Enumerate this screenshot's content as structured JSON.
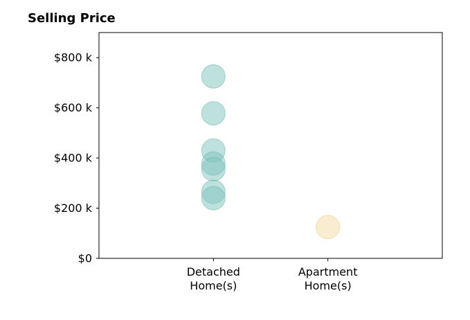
{
  "chart_data": {
    "type": "scatter",
    "title": "Selling Price",
    "xlabel": "",
    "ylabel": "",
    "categories": [
      "Detached Home(s)",
      "Apartment Home(s)"
    ],
    "category_label_lines": [
      [
        "Detached",
        "Home(s)"
      ],
      [
        "Apartment",
        "Home(s)"
      ]
    ],
    "xlim": [
      0,
      3
    ],
    "ylim": [
      0,
      900000
    ],
    "y_ticks": [
      0,
      200000,
      400000,
      600000,
      800000
    ],
    "y_tick_labels": [
      "$0",
      "$200 k",
      "$400 k",
      "$600 k",
      "$800 k"
    ],
    "grid": false,
    "series": [
      {
        "category": "Detached Home(s)",
        "color": "#80c4bd",
        "edge_color": "#5fb3aa",
        "opacity": 0.5,
        "values": [
          725000,
          578000,
          430000,
          378000,
          355000,
          265000,
          240000
        ]
      },
      {
        "category": "Apartment Home(s)",
        "color": "#f7e4bd",
        "edge_color": "#f0d49c",
        "opacity": 0.7,
        "values": [
          125000
        ]
      }
    ]
  }
}
